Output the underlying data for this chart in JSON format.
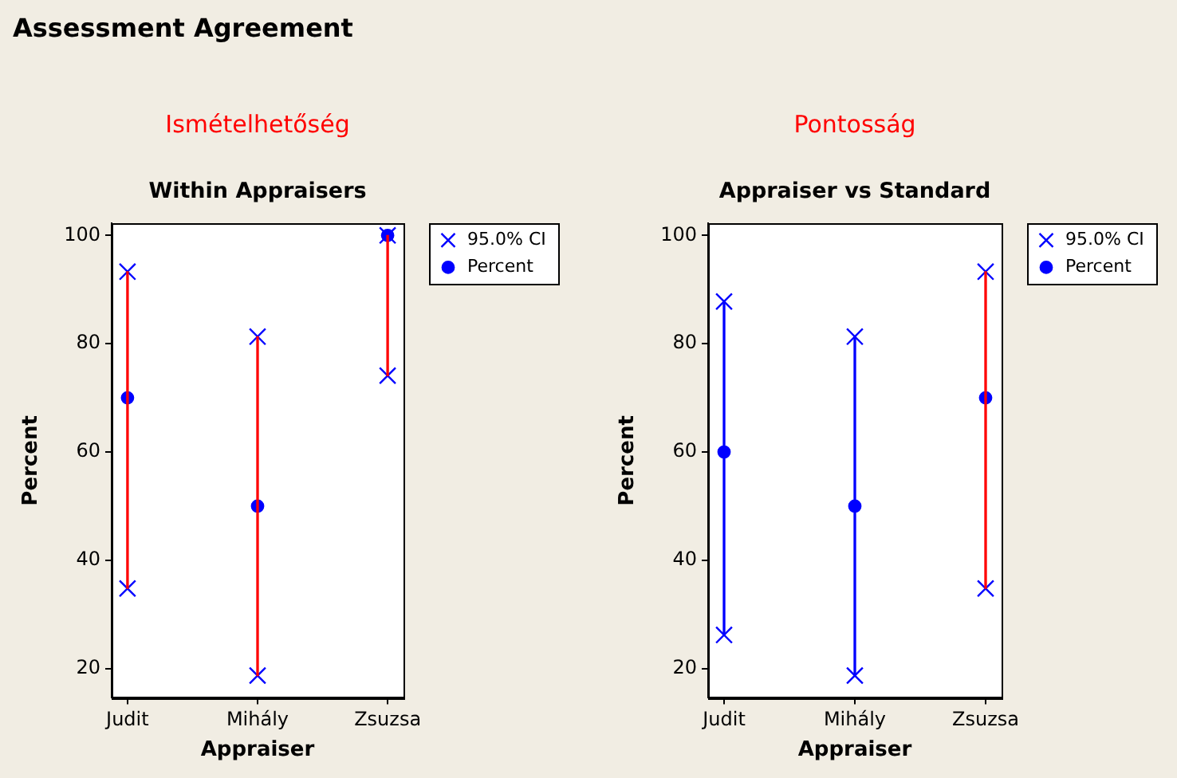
{
  "chart_data": [
    {
      "type": "scatter",
      "title": "Within Appraisers",
      "subtitle": "Ismételhetőség",
      "annotations": [
        "Assessment Agreement"
      ],
      "xlabel": "Appraiser",
      "ylabel": "Percent",
      "categories": [
        "Judit",
        "Mihály",
        "Zsuzsa"
      ],
      "ylim": [
        14.6,
        102.2
      ],
      "yticks": [
        20,
        40,
        60,
        80,
        100
      ],
      "legend": "top right",
      "series": [
        {
          "name": "95.0% CI",
          "marker": "cross",
          "color": "#0000ff",
          "values": [
            93.3,
            81.3,
            100
          ]
        },
        {
          "marker": "cross",
          "color": "#0000ff",
          "values": [
            34.8,
            18.7,
            74.1
          ]
        },
        {
          "name": "Percent",
          "marker": "circle",
          "color": "#0000ff",
          "values": [
            70,
            50,
            100
          ]
        },
        {
          "type": "bar",
          "base": [
            34.8,
            18.7,
            74.1
          ],
          "values": [
            58.5,
            62.6,
            25.9
          ],
          "colors": [
            "#ff0000",
            "#ff0000",
            "#ff0000"
          ]
        }
      ]
    },
    {
      "type": "scatter",
      "title": "Appraiser vs Standard",
      "subtitle": "Pontosság",
      "xlabel": "Appraiser",
      "ylabel": "Percent",
      "categories": [
        "Judit",
        "Mihály",
        "Zsuzsa"
      ],
      "ylim": [
        14.6,
        102.2
      ],
      "yticks": [
        20,
        40,
        60,
        80,
        100
      ],
      "legend": "top right",
      "series": [
        {
          "name": "95.0% CI",
          "marker": "cross",
          "color": "#0000ff",
          "values": [
            87.8,
            81.3,
            93.3
          ]
        },
        {
          "marker": "cross",
          "color": "#0000ff",
          "values": [
            26.2,
            18.7,
            34.8
          ]
        },
        {
          "name": "Percent",
          "marker": "circle",
          "color": "#0000ff",
          "values": [
            60,
            50,
            70
          ]
        },
        {
          "type": "bar",
          "base": [
            26.2,
            18.7,
            34.8
          ],
          "values": [
            61.6,
            62.6,
            58.5
          ],
          "colors": [
            "#0000ff",
            "#0000ff",
            "#ff0000"
          ]
        }
      ]
    }
  ]
}
